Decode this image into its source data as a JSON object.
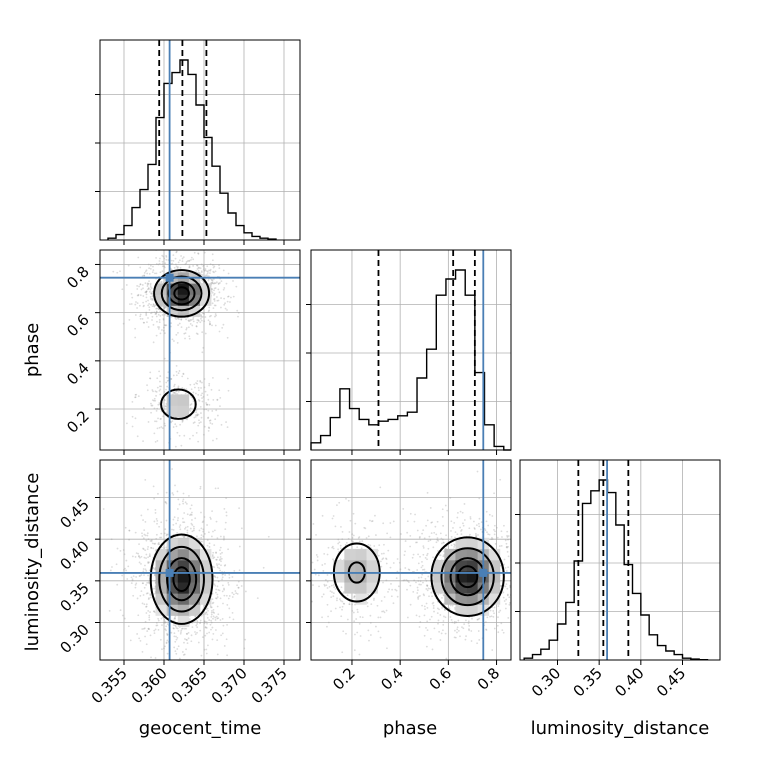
{
  "chart_data": {
    "type": "corner",
    "parameters": [
      "geocent_time",
      "phase",
      "luminosity_distance"
    ],
    "axis_labels": {
      "x": [
        "geocent_time",
        "phase",
        "luminosity_distance"
      ],
      "y": [
        "",
        "phase",
        "luminosity_distance"
      ]
    },
    "ranges": {
      "geocent_time": [
        0.352,
        0.377
      ],
      "phase": [
        0.03,
        0.86
      ],
      "luminosity_distance": [
        0.255,
        0.495
      ]
    },
    "ticks": {
      "geocent_time": [
        0.355,
        0.36,
        0.365,
        0.37,
        0.375
      ],
      "geocent_time_labels": [
        "0.355",
        "0.360",
        "0.365",
        "0.370",
        "0.375"
      ],
      "phase": [
        0.2,
        0.4,
        0.6,
        0.8
      ],
      "phase_labels": [
        "0.2",
        "0.4",
        "0.6",
        "0.8"
      ],
      "luminosity_distance": [
        0.3,
        0.35,
        0.4,
        0.45
      ],
      "luminosity_distance_labels": [
        "0.30",
        "0.35",
        "0.40",
        "0.45"
      ]
    },
    "truths": {
      "geocent_time": 0.3607,
      "phase": 0.745,
      "luminosity_distance": 0.3595
    },
    "quantiles": {
      "geocent_time": [
        0.3594,
        0.3623,
        0.3653
      ],
      "phase": [
        0.31,
        0.62,
        0.71
      ],
      "luminosity_distance": [
        0.325,
        0.355,
        0.385
      ]
    },
    "histograms": {
      "geocent_time": {
        "bins": [
          0.353,
          0.354,
          0.355,
          0.356,
          0.357,
          0.358,
          0.359,
          0.36,
          0.361,
          0.362,
          0.363,
          0.364,
          0.365,
          0.366,
          0.367,
          0.368,
          0.369,
          0.37,
          0.371,
          0.372,
          0.373,
          0.374
        ],
        "counts": [
          0.01,
          0.03,
          0.08,
          0.18,
          0.28,
          0.42,
          0.68,
          0.87,
          0.93,
          1.0,
          0.92,
          0.75,
          0.57,
          0.41,
          0.26,
          0.15,
          0.08,
          0.04,
          0.02,
          0.01,
          0.005
        ]
      },
      "phase": {
        "bins": [
          0.03,
          0.07,
          0.11,
          0.15,
          0.19,
          0.23,
          0.27,
          0.31,
          0.35,
          0.39,
          0.43,
          0.47,
          0.51,
          0.55,
          0.59,
          0.63,
          0.67,
          0.71,
          0.75,
          0.79,
          0.83,
          0.86
        ],
        "counts": [
          0.04,
          0.08,
          0.18,
          0.34,
          0.23,
          0.17,
          0.14,
          0.16,
          0.17,
          0.19,
          0.21,
          0.4,
          0.56,
          0.86,
          0.95,
          1.0,
          0.86,
          0.43,
          0.14,
          0.02,
          0.0
        ]
      },
      "luminosity_distance": {
        "bins": [
          0.26,
          0.27,
          0.28,
          0.29,
          0.3,
          0.31,
          0.32,
          0.33,
          0.34,
          0.35,
          0.36,
          0.37,
          0.38,
          0.39,
          0.4,
          0.41,
          0.42,
          0.43,
          0.44,
          0.45,
          0.46,
          0.47,
          0.48
        ],
        "counts": [
          0.01,
          0.03,
          0.06,
          0.11,
          0.2,
          0.32,
          0.55,
          0.87,
          0.94,
          1.0,
          0.93,
          0.75,
          0.53,
          0.37,
          0.25,
          0.14,
          0.08,
          0.05,
          0.03,
          0.01,
          0.005,
          0.002
        ]
      }
    },
    "density_2d": {
      "phase_vs_geocent_time": {
        "x": "geocent_time",
        "y": "phase",
        "modes": [
          {
            "x": 0.3622,
            "y": 0.68,
            "sx": 0.0016,
            "sy": 0.045,
            "w": 1.0
          },
          {
            "x": 0.3618,
            "y": 0.22,
            "sx": 0.0016,
            "sy": 0.045,
            "w": 0.25
          }
        ],
        "contour_levels": [
          0.1,
          0.3,
          0.6,
          0.85
        ]
      },
      "luminosity_distance_vs_geocent_time": {
        "x": "geocent_time",
        "y": "luminosity_distance",
        "modes": [
          {
            "x": 0.3622,
            "y": 0.352,
            "sx": 0.0018,
            "sy": 0.025,
            "w": 1.0
          }
        ],
        "contour_levels": [
          0.1,
          0.3,
          0.6,
          0.85
        ]
      },
      "luminosity_distance_vs_phase": {
        "x": "phase",
        "y": "luminosity_distance",
        "modes": [
          {
            "x": 0.68,
            "y": 0.355,
            "sx": 0.07,
            "sy": 0.022,
            "w": 1.0
          },
          {
            "x": 0.22,
            "y": 0.36,
            "sx": 0.06,
            "sy": 0.022,
            "w": 0.35
          }
        ],
        "contour_levels": [
          0.1,
          0.3,
          0.6,
          0.85
        ]
      }
    },
    "colors": {
      "truth": "#4a7fb5",
      "contour": "#000000",
      "density": "#000000",
      "grid": "#b0b0b0"
    },
    "grid": true
  }
}
